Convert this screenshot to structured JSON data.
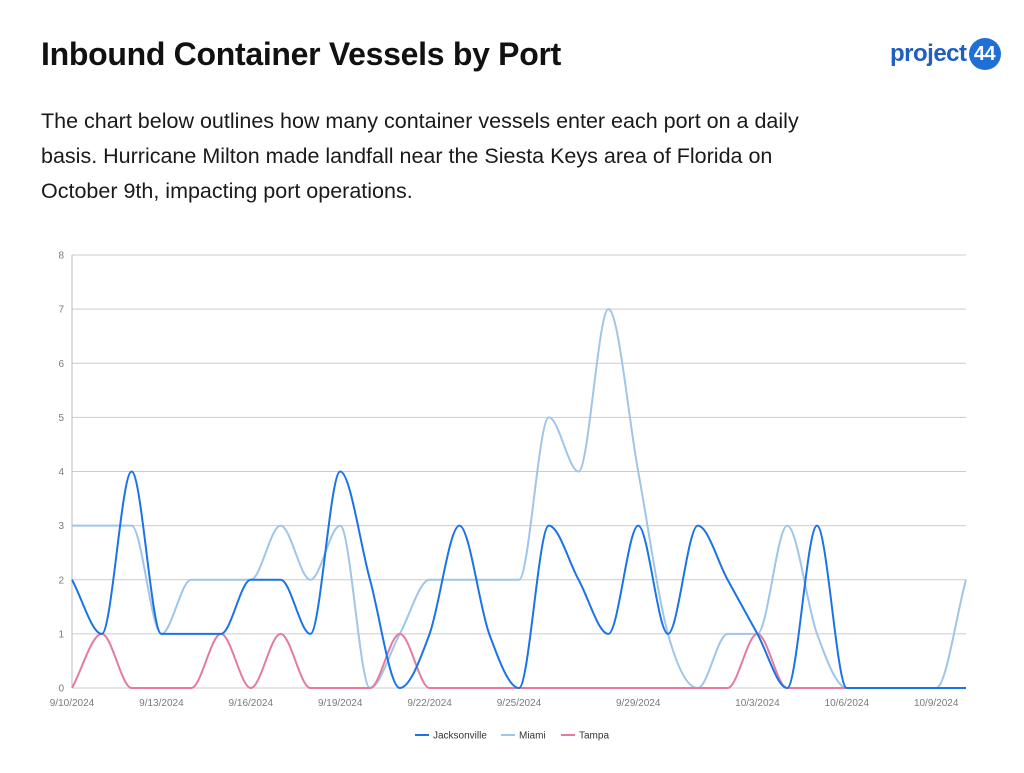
{
  "header": {
    "title": "Inbound Container Vessels by Port",
    "subtitle": "The chart below outlines how many container vessels enter each port on a daily basis. Hurricane Milton made landfall near the Siesta Keys area of Florida on October 9th, impacting port operations.",
    "logo_text": "project",
    "logo_badge": "44"
  },
  "colors": {
    "jacksonville": "#1a73e8",
    "miami": "#9fc5e8",
    "tampa": "#e57a9e",
    "grid": "#cccccc"
  },
  "chart_data": {
    "type": "line",
    "title": "",
    "xlabel": "",
    "ylabel": "",
    "ylim": [
      0,
      8
    ],
    "y_ticks": [
      0,
      1,
      2,
      3,
      4,
      5,
      6,
      7,
      8
    ],
    "grid": true,
    "legend_position": "bottom",
    "x": [
      "9/10/2024",
      "9/11/2024",
      "9/12/2024",
      "9/13/2024",
      "9/14/2024",
      "9/15/2024",
      "9/16/2024",
      "9/17/2024",
      "9/18/2024",
      "9/19/2024",
      "9/20/2024",
      "9/21/2024",
      "9/22/2024",
      "9/23/2024",
      "9/24/2024",
      "9/25/2024",
      "9/26/2024",
      "9/27/2024",
      "9/28/2024",
      "9/29/2024",
      "9/30/2024",
      "10/1/2024",
      "10/2/2024",
      "10/3/2024",
      "10/4/2024",
      "10/5/2024",
      "10/6/2024",
      "10/7/2024",
      "10/8/2024",
      "10/9/2024",
      "10/10/2024"
    ],
    "x_tick_labels": [
      "9/10/2024",
      "9/13/2024",
      "9/16/2024",
      "9/19/2024",
      "9/22/2024",
      "9/25/2024",
      "9/29/2024",
      "10/3/2024",
      "10/6/2024",
      "10/9/2024"
    ],
    "series": [
      {
        "name": "Jacksonville",
        "values": [
          2,
          1,
          4,
          1,
          1,
          1,
          2,
          2,
          1,
          4,
          2,
          0,
          1,
          3,
          1,
          0,
          3,
          2,
          1,
          3,
          1,
          3,
          2,
          1,
          0,
          3,
          0,
          0,
          0,
          0,
          0
        ]
      },
      {
        "name": "Miami",
        "values": [
          3,
          3,
          3,
          1,
          2,
          2,
          2,
          3,
          2,
          3,
          0,
          1,
          2,
          2,
          2,
          2,
          5,
          4,
          7,
          4,
          1,
          0,
          1,
          1,
          3,
          1,
          0,
          0,
          0,
          0,
          2
        ]
      },
      {
        "name": "Tampa",
        "values": [
          0,
          1,
          0,
          0,
          0,
          1,
          0,
          1,
          0,
          0,
          0,
          1,
          0,
          0,
          0,
          0,
          0,
          0,
          0,
          0,
          0,
          0,
          0,
          1,
          0,
          0,
          0,
          0,
          0,
          0,
          0
        ]
      }
    ]
  }
}
